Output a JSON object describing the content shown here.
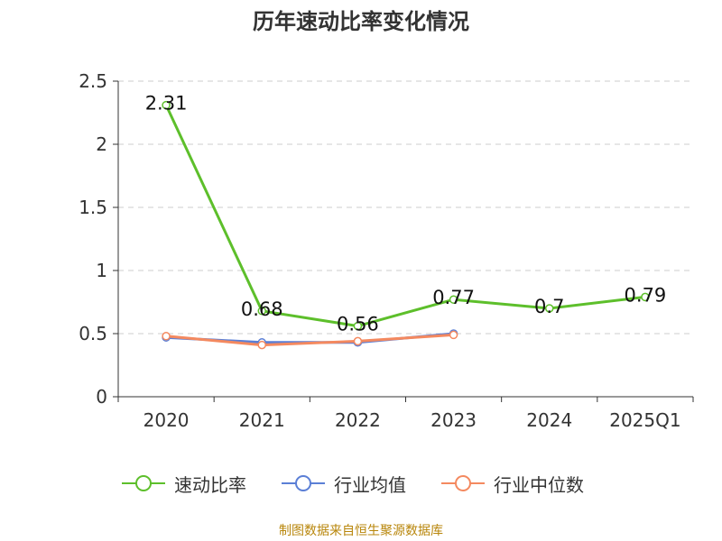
{
  "title": "历年速动比率变化情况",
  "source": "制图数据来自恒生聚源数据库",
  "chart_data": {
    "type": "line",
    "categories": [
      "2020",
      "2021",
      "2022",
      "2023",
      "2024",
      "2025Q1"
    ],
    "ylim": [
      0,
      2.5
    ],
    "yticks": [
      "0",
      "0.5",
      "1",
      "1.5",
      "2",
      "2.5"
    ],
    "grid": true,
    "legend_position": "bottom",
    "series": [
      {
        "name": "速动比率",
        "color": "#5dbf2b",
        "values": [
          2.31,
          0.68,
          0.56,
          0.77,
          0.7,
          0.79
        ],
        "labels": [
          "2.31",
          "0.68",
          "0.56",
          "0.77",
          "0.7",
          "0.79"
        ]
      },
      {
        "name": "行业均值",
        "color": "#5b7fd6",
        "values": [
          0.47,
          0.43,
          0.43,
          0.5,
          null,
          null
        ]
      },
      {
        "name": "行业中位数",
        "color": "#f4895f",
        "values": [
          0.48,
          0.41,
          0.44,
          0.49,
          null,
          null
        ]
      }
    ]
  }
}
